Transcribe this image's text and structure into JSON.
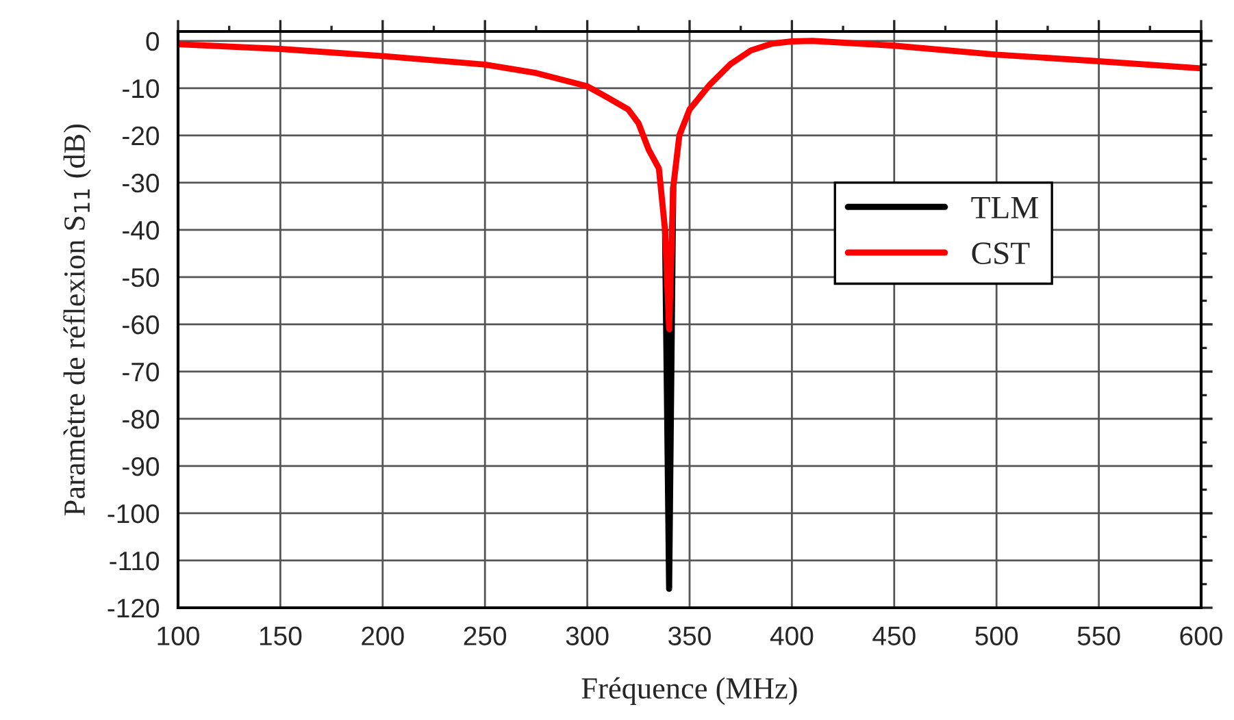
{
  "chart_data": {
    "type": "line",
    "xlabel": "Fréquence (MHz)",
    "ylabel": "Paramètre de réflexion S$_{11}$ (dB)",
    "x": [
      100,
      150,
      200,
      250,
      275,
      300,
      310,
      320,
      325,
      330,
      335,
      338,
      340,
      342,
      345,
      350,
      360,
      370,
      380,
      390,
      400,
      410,
      450,
      500,
      550,
      600
    ],
    "series": [
      {
        "name": "TLM",
        "color": "#000000",
        "values": [
          null,
          null,
          null,
          null,
          null,
          null,
          null,
          null,
          null,
          null,
          null,
          -40,
          -116,
          -31,
          null,
          null,
          null,
          null,
          null,
          null,
          null,
          null,
          null,
          null,
          null,
          null
        ]
      },
      {
        "name": "CST",
        "color": "#ff0000",
        "values": [
          -0.7,
          -1.7,
          -3.2,
          -5,
          -6.8,
          -9.6,
          -12,
          -14.5,
          -17.4,
          -23,
          -27,
          -40,
          -61,
          -31,
          -20,
          -14.5,
          -9.2,
          -4.9,
          -2,
          -0.6,
          -0.1,
          0,
          -1,
          -2.9,
          -4.3,
          -5.8
        ]
      }
    ],
    "xlim": [
      100,
      600
    ],
    "xticks": [
      100,
      150,
      200,
      250,
      300,
      350,
      400,
      450,
      500,
      550,
      600
    ],
    "ylim": [
      -120,
      2
    ],
    "yticks": [
      0,
      -10,
      -20,
      -30,
      -40,
      -50,
      -60,
      -70,
      -80,
      -90,
      -100,
      -110,
      -120
    ],
    "grid": true,
    "legend": "right",
    "line_style": "solid",
    "marker": "none"
  }
}
